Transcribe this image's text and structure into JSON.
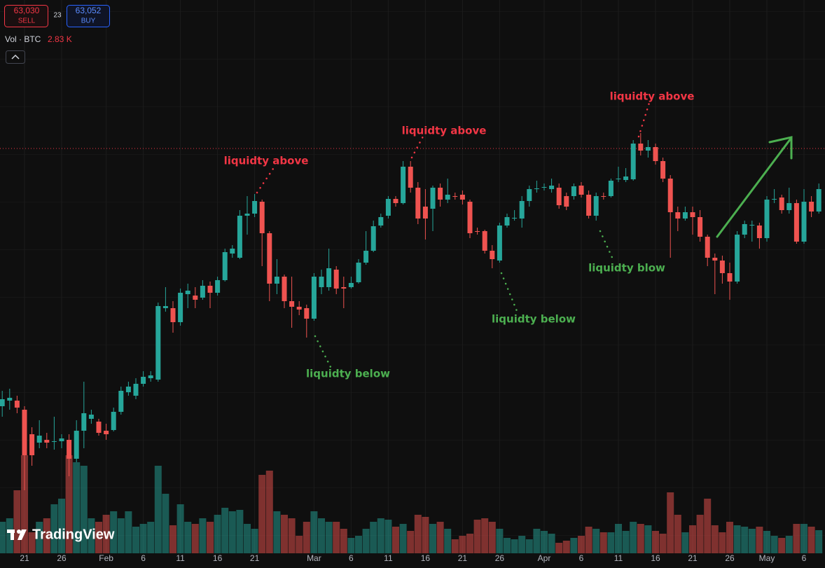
{
  "header": {
    "sell_price": "63,030",
    "sell_label": "SELL",
    "spread": "23",
    "buy_price": "63,052",
    "buy_label": "BUY",
    "volume_label": "Vol · BTC",
    "volume_value": "2.83 K"
  },
  "logo": "TradingView",
  "chart_data": {
    "type": "candlestick",
    "categories": [
      null,
      null,
      null,
      "21",
      null,
      null,
      null,
      null,
      "26",
      null,
      null,
      null,
      null,
      null,
      "Feb",
      null,
      null,
      null,
      null,
      "6",
      null,
      null,
      null,
      null,
      "11",
      null,
      null,
      null,
      null,
      "16",
      null,
      null,
      null,
      null,
      "21",
      null,
      null,
      null,
      null,
      null,
      null,
      null,
      "Mar",
      null,
      null,
      null,
      null,
      "6",
      null,
      null,
      null,
      null,
      "11",
      null,
      null,
      null,
      null,
      "16",
      null,
      null,
      null,
      null,
      "21",
      null,
      null,
      null,
      null,
      "26",
      null,
      null,
      null,
      null,
      null,
      "Apr",
      null,
      null,
      null,
      null,
      "6",
      null,
      null,
      null,
      null,
      "11",
      null,
      null,
      null,
      null,
      "16",
      null,
      null,
      null,
      null,
      "21",
      null,
      null,
      null,
      null,
      "26",
      null,
      null,
      null,
      null,
      "May",
      null,
      null,
      null,
      null,
      "6",
      null,
      null
    ],
    "open": [
      51000,
      51400,
      51400,
      50750,
      49000,
      48400,
      48600,
      48450,
      48500,
      48600,
      47250,
      49250,
      50100,
      49900,
      49250,
      49300,
      50600,
      52000,
      51750,
      52600,
      53000,
      52900,
      58000,
      58000,
      57000,
      59000,
      58900,
      58750,
      59600,
      59100,
      60000,
      61900,
      61600,
      64600,
      64750,
      65600,
      63350,
      59750,
      60250,
      58500,
      58100,
      58000,
      57250,
      59500,
      59500,
      60750,
      59500,
      59500,
      59850,
      61250,
      62100,
      63900,
      64600,
      65800,
      65500,
      68100,
      66600,
      65250,
      65100,
      66600,
      65750,
      66000,
      66100,
      65600,
      63500,
      63500,
      62100,
      61400,
      63900,
      64400,
      64400,
      65650,
      66500,
      66600,
      66500,
      66600,
      66000,
      66000,
      66750,
      66100,
      64600,
      66000,
      66000,
      67200,
      67150,
      67200,
      69750,
      69250,
      69500,
      68500,
      67250,
      64850,
      64400,
      64850,
      64500,
      63100,
      61600,
      61400,
      60500,
      59900,
      63250,
      63900,
      63900,
      63000,
      65750,
      65900,
      65000,
      65500,
      62750,
      65600,
      64900
    ],
    "high": [
      52100,
      52250,
      51750,
      51000,
      49500,
      50000,
      49100,
      50250,
      49000,
      49000,
      50000,
      52750,
      50750,
      50100,
      49750,
      50900,
      52400,
      52750,
      53000,
      53500,
      53500,
      58400,
      59500,
      58500,
      59400,
      59750,
      59500,
      60000,
      59900,
      60250,
      62250,
      62500,
      65000,
      66000,
      66150,
      65750,
      63500,
      61500,
      60400,
      60250,
      58500,
      58250,
      60500,
      60750,
      62250,
      61000,
      60250,
      60250,
      61500,
      63500,
      64250,
      64750,
      66000,
      66000,
      68500,
      68500,
      67000,
      66500,
      66750,
      66900,
      67250,
      66250,
      66400,
      65750,
      63750,
      63600,
      62500,
      64100,
      64750,
      65000,
      66000,
      66750,
      67100,
      66900,
      67250,
      66900,
      66250,
      66900,
      67000,
      66400,
      66250,
      66250,
      67250,
      68100,
      68000,
      70000,
      70500,
      70000,
      69750,
      68750,
      67500,
      65250,
      65250,
      65250,
      65000,
      63250,
      61900,
      61750,
      61250,
      63500,
      64250,
      64250,
      64100,
      66000,
      66500,
      66100,
      66600,
      65750,
      66500,
      66000,
      66900
    ],
    "low": [
      50250,
      50750,
      50500,
      45000,
      46750,
      48000,
      48000,
      47900,
      48000,
      46000,
      47000,
      48000,
      49750,
      48900,
      48600,
      49200,
      50400,
      51750,
      51500,
      52400,
      52750,
      52750,
      57750,
      56250,
      56750,
      58000,
      58000,
      58600,
      58000,
      58900,
      59900,
      61600,
      61500,
      63250,
      64500,
      61000,
      58500,
      59000,
      58000,
      56600,
      57500,
      55900,
      57100,
      59000,
      59250,
      59000,
      58000,
      59400,
      59750,
      61100,
      62000,
      63750,
      64400,
      65250,
      65400,
      66250,
      64000,
      62900,
      63500,
      65250,
      65500,
      65750,
      65400,
      63000,
      63250,
      61900,
      60850,
      61250,
      63750,
      64250,
      63750,
      65250,
      66250,
      66400,
      66250,
      65100,
      65000,
      65750,
      65900,
      64400,
      64250,
      65750,
      65900,
      67000,
      67000,
      67100,
      68900,
      68750,
      68250,
      67000,
      61600,
      63500,
      64250,
      63250,
      62750,
      61000,
      59000,
      59750,
      58600,
      59750,
      63000,
      62750,
      62250,
      62750,
      65500,
      64750,
      64750,
      62600,
      62600,
      64500,
      64750
    ],
    "close": [
      51500,
      51600,
      50900,
      47500,
      47500,
      48900,
      48400,
      48500,
      48700,
      47250,
      49250,
      50500,
      50400,
      49100,
      49000,
      50600,
      52100,
      52400,
      52600,
      53100,
      53200,
      58150,
      58150,
      57000,
      59100,
      59250,
      58600,
      59600,
      59100,
      60000,
      62000,
      62250,
      64600,
      64750,
      65650,
      63350,
      59750,
      60250,
      58500,
      58100,
      57900,
      57250,
      60250,
      60250,
      60850,
      59400,
      59400,
      59800,
      61250,
      62100,
      63850,
      64500,
      65800,
      65500,
      68100,
      66600,
      64400,
      64400,
      66600,
      65750,
      66100,
      65950,
      65750,
      63350,
      63450,
      62100,
      61500,
      63900,
      64500,
      64450,
      65650,
      66500,
      66550,
      66650,
      66750,
      65350,
      65250,
      66700,
      66100,
      64600,
      66000,
      65950,
      67100,
      67250,
      67400,
      69750,
      69250,
      69500,
      68500,
      67250,
      64850,
      64400,
      64850,
      64500,
      63100,
      61600,
      61400,
      60500,
      59900,
      63250,
      64000,
      63950,
      63000,
      65750,
      65800,
      65000,
      65500,
      62750,
      65600,
      64900,
      66500
    ],
    "volume": [
      3600,
      4000,
      7200,
      11200,
      2400,
      3600,
      4000,
      5600,
      6240,
      11200,
      10400,
      10000,
      4000,
      3600,
      4400,
      4800,
      4000,
      4800,
      3040,
      3360,
      3600,
      10000,
      6800,
      3200,
      5600,
      3600,
      3360,
      4000,
      3600,
      4400,
      5200,
      4800,
      4960,
      3360,
      2800,
      8960,
      9440,
      4800,
      4400,
      4000,
      2000,
      3600,
      4800,
      4000,
      3600,
      3600,
      2800,
      1760,
      2000,
      2800,
      3600,
      4000,
      3840,
      3040,
      3360,
      2560,
      4400,
      4160,
      3360,
      3600,
      2800,
      1600,
      2000,
      2240,
      3840,
      4000,
      3600,
      2800,
      1760,
      1600,
      2000,
      1600,
      2800,
      2560,
      2240,
      1200,
      1440,
      1760,
      2000,
      3040,
      2800,
      2400,
      2400,
      3360,
      2560,
      3600,
      3360,
      3200,
      2560,
      2240,
      6960,
      4400,
      2400,
      3200,
      4400,
      6240,
      3200,
      2400,
      3600,
      3200,
      3040,
      2800,
      3040,
      2560,
      2000,
      1760,
      2000,
      3360,
      3360,
      3040,
      2640
    ],
    "ylim": [
      40000,
      80000
    ],
    "volume_lim": [
      0,
      16000
    ],
    "up_color": "#26a69a",
    "down_color": "#ef5350",
    "annotations": [
      {
        "text": "liquidty above",
        "color": "#f23645"
      },
      {
        "text": "liquidty above",
        "color": "#f23645"
      },
      {
        "text": "liquidty above",
        "color": "#f23645"
      },
      {
        "text": "liquidty below",
        "color": "#4caf50"
      },
      {
        "text": "liquidty below",
        "color": "#4caf50"
      },
      {
        "text": "liquidty blow",
        "color": "#4caf50"
      }
    ]
  }
}
